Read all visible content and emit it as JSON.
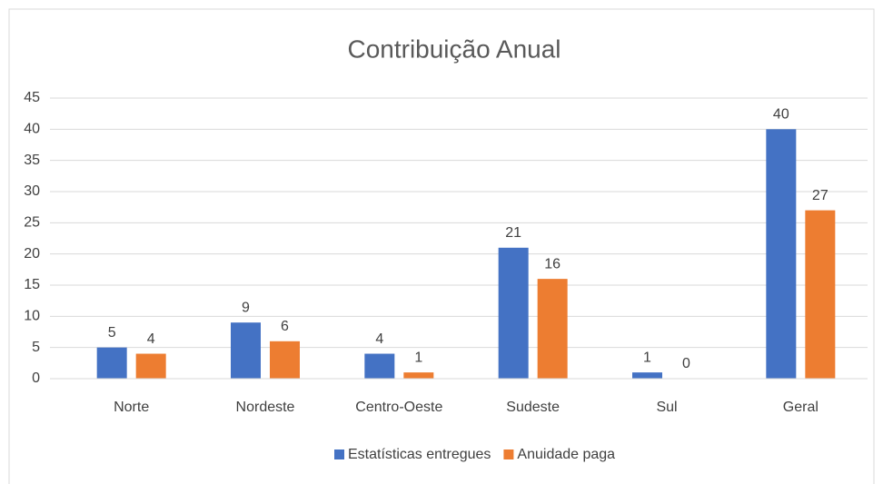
{
  "chart_data": {
    "type": "bar",
    "title": "Contribuição Anual",
    "categories": [
      "Norte",
      "Nordeste",
      "Centro-Oeste",
      "Sudeste",
      "Sul",
      "Geral"
    ],
    "series": [
      {
        "name": "Estatísticas entregues",
        "color": "#4472c4",
        "values": [
          5,
          9,
          4,
          21,
          1,
          40
        ]
      },
      {
        "name": "Anuidade paga",
        "color": "#ed7d31",
        "values": [
          4,
          6,
          1,
          16,
          0,
          27
        ]
      }
    ],
    "ylim": [
      0,
      45
    ],
    "yticks": [
      0,
      5,
      10,
      15,
      20,
      25,
      30,
      35,
      40,
      45
    ],
    "grid": true,
    "legend": "bottom"
  }
}
